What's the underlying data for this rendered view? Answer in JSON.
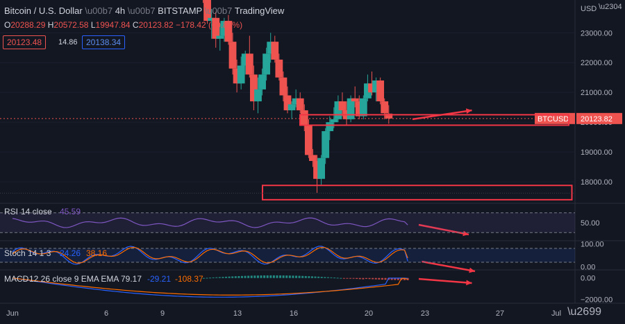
{
  "header": {
    "symbol_title": "Bitcoin / U.S. Dollar",
    "interval": "4h",
    "exchange": "BITSTAMP",
    "source": "TradingView",
    "o_label": "O",
    "o_val": "20288.29",
    "h_label": "H",
    "h_val": "20572.58",
    "l_label": "L",
    "l_val": "19947.84",
    "c_label": "C",
    "c_val": "20123.82",
    "change": "−178.42 (−0.88%)",
    "bid": "20123.48",
    "spread": "14.86",
    "ask": "20138.34"
  },
  "currency": "USD",
  "colors": {
    "bg": "#131722",
    "up": "#26a69a",
    "down": "#ef5350",
    "annotation": "#f23645",
    "rsi": "#7e57c2",
    "macd": "#2962ff",
    "signal": "#ff6d00",
    "axis_text": "#b2b5be"
  },
  "chart_data": {
    "type": "candlestick",
    "symbol": "BTCUSD",
    "last_price": 20123.82,
    "price_ticks": [
      18000,
      19000,
      20000,
      21000,
      22000,
      23000
    ],
    "price_tick_labels": [
      "18000.00",
      "19000.00",
      "20000.00",
      "21000.00",
      "22000.00",
      "23000.00"
    ],
    "price_range": [
      17350,
      24100
    ],
    "x_ticks": [
      "Jun",
      "6",
      "9",
      "13",
      "16",
      "20",
      "23",
      "27",
      "Jul"
    ],
    "x_tick_index": [
      0,
      30,
      48,
      72,
      90,
      114,
      132,
      156,
      174
    ],
    "x_range": [
      -4,
      180
    ],
    "candles": [
      [
        24300,
        24700,
        24000,
        24200
      ],
      [
        24200,
        24500,
        23300,
        23400
      ],
      [
        23400,
        23800,
        22800,
        23500
      ],
      [
        23500,
        23700,
        22500,
        22800
      ],
      [
        22800,
        23300,
        22400,
        22900
      ],
      [
        22900,
        23500,
        22700,
        23400
      ],
      [
        23400,
        23600,
        22600,
        22700
      ],
      [
        22700,
        23000,
        21600,
        21800
      ],
      [
        21800,
        22100,
        21000,
        21300
      ],
      [
        21300,
        22200,
        21100,
        21900
      ],
      [
        21900,
        22400,
        21600,
        22300
      ],
      [
        22300,
        22900,
        21500,
        21600
      ],
      [
        21600,
        21900,
        20400,
        20700
      ],
      [
        20700,
        21500,
        20300,
        21100
      ],
      [
        21100,
        21800,
        20900,
        21600
      ],
      [
        21600,
        22500,
        21400,
        22300
      ],
      [
        22300,
        23000,
        22000,
        22700
      ],
      [
        22700,
        22900,
        22000,
        22100
      ],
      [
        22100,
        22300,
        21400,
        21500
      ],
      [
        21500,
        21700,
        20700,
        20900
      ],
      [
        20900,
        21200,
        20300,
        20400
      ],
      [
        20400,
        20700,
        20100,
        20600
      ],
      [
        20600,
        21100,
        20500,
        20800
      ],
      [
        20800,
        21000,
        20300,
        20400
      ],
      [
        20400,
        20600,
        19700,
        19900
      ],
      [
        19900,
        20100,
        18800,
        18900
      ],
      [
        18900,
        19100,
        18500,
        18700
      ],
      [
        18700,
        18900,
        17620,
        18100
      ],
      [
        18100,
        18900,
        17900,
        18800
      ],
      [
        18800,
        19800,
        18600,
        19700
      ],
      [
        19700,
        20200,
        19400,
        20000
      ],
      [
        20000,
        20500,
        19800,
        20100
      ],
      [
        20100,
        20900,
        20000,
        20700
      ],
      [
        20700,
        21000,
        20200,
        20400
      ],
      [
        20400,
        20700,
        19900,
        20100
      ],
      [
        20100,
        20900,
        20000,
        20800
      ],
      [
        20800,
        21200,
        20500,
        20700
      ],
      [
        20700,
        20900,
        20100,
        20200
      ],
      [
        20200,
        20900,
        20100,
        20800
      ],
      [
        20800,
        21600,
        20700,
        21300
      ],
      [
        21300,
        21700,
        20900,
        21000
      ],
      [
        21000,
        21500,
        20700,
        21400
      ],
      [
        21400,
        21500,
        20600,
        20700
      ],
      [
        20700,
        20800,
        20100,
        20300
      ],
      [
        20288.29,
        20572.58,
        19947.84,
        20123.82
      ]
    ],
    "candle_start_index": 61,
    "rsi": {
      "label": "RSI",
      "params": "14 close",
      "value": 45.59,
      "tick_labels": [
        "50.00"
      ],
      "range": [
        15,
        85
      ],
      "bands": [
        30,
        70
      ]
    },
    "stoch": {
      "label": "Stoch",
      "params": "14 1 3",
      "k": 24.26,
      "d": 38.16,
      "tick_labels": [
        "100.00",
        "0.00"
      ],
      "ticks": [
        100,
        0
      ],
      "range": [
        -10,
        110
      ],
      "bands": [
        20,
        80
      ]
    },
    "macd": {
      "label": "MACD",
      "params": "12 26 close 9 EMA EMA",
      "hist": 79.17,
      "macd": -29.21,
      "signal": -108.37,
      "tick_labels": [
        "0.00",
        "−2000.00"
      ],
      "ticks": [
        0,
        -2000
      ],
      "range": [
        -2300,
        700
      ]
    }
  }
}
